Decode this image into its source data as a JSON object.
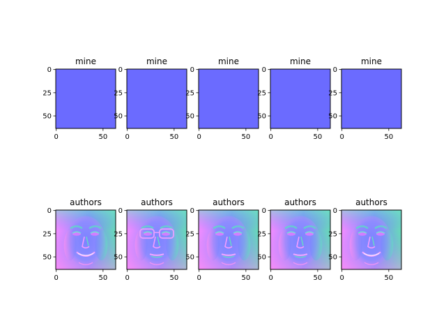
{
  "chart_data": {
    "type": "image-grid",
    "rows": [
      {
        "row_name": "mine",
        "panels": [
          {
            "title": "mine",
            "image": "flat-blue-normal-map"
          },
          {
            "title": "mine",
            "image": "flat-blue-normal-map"
          },
          {
            "title": "mine",
            "image": "flat-blue-normal-map"
          },
          {
            "title": "mine",
            "image": "flat-blue-normal-map"
          },
          {
            "title": "mine",
            "image": "flat-blue-normal-map"
          }
        ]
      },
      {
        "row_name": "authors",
        "panels": [
          {
            "title": "authors",
            "image": "face-normal-map-smiling-woman"
          },
          {
            "title": "authors",
            "image": "face-normal-map-man-with-glasses"
          },
          {
            "title": "authors",
            "image": "face-normal-map-woman-neutral"
          },
          {
            "title": "authors",
            "image": "face-normal-map-man-neutral"
          },
          {
            "title": "authors",
            "image": "face-normal-map-smiling-woman"
          }
        ]
      }
    ],
    "x_ticks": [
      0,
      50
    ],
    "y_ticks": [
      0,
      25,
      50
    ],
    "xlim": [
      -0.5,
      63.5
    ],
    "ylim": [
      63.5,
      -0.5
    ],
    "first_column_only_y_labels": false,
    "colors": {
      "mine_fill": "#6b6bff",
      "normal_blue": "#7a84ff",
      "normal_pink": "#f08cff",
      "normal_green": "#6fe6b4",
      "normal_cyan": "#6fd6ff"
    }
  }
}
